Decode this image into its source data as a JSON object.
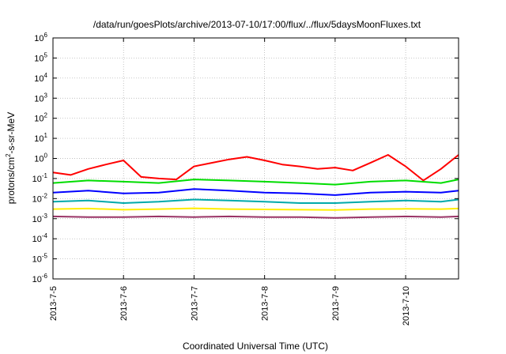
{
  "chart_data": {
    "type": "line",
    "title": "/data/run/goesPlots/archive/2013-07-10/17:00/flux/../flux/5daysMoonFluxes.txt",
    "xlabel": "Coordinated Universal Time (UTC)",
    "ylabel": {
      "base": "protons/cm",
      "sup": "2",
      "rest": "-s-sr-MeV"
    },
    "yscale": "log",
    "ylim": [
      1e-06,
      1000000.0
    ],
    "xlim": [
      "2013-07-05",
      "2013-07-10 18:00"
    ],
    "grid": true,
    "y_ticks": [
      {
        "value": 1e-06,
        "base": "10",
        "exp": "-6"
      },
      {
        "value": 1e-05,
        "base": "10",
        "exp": "-5"
      },
      {
        "value": 0.0001,
        "base": "10",
        "exp": "-4"
      },
      {
        "value": 0.001,
        "base": "10",
        "exp": "-3"
      },
      {
        "value": 0.01,
        "base": "10",
        "exp": "-2"
      },
      {
        "value": 0.1,
        "base": "10",
        "exp": "-1"
      },
      {
        "value": 1,
        "base": "10",
        "exp": "0"
      },
      {
        "value": 10.0,
        "base": "10",
        "exp": "1"
      },
      {
        "value": 100.0,
        "base": "10",
        "exp": "2"
      },
      {
        "value": 1000.0,
        "base": "10",
        "exp": "3"
      },
      {
        "value": 10000.0,
        "base": "10",
        "exp": "4"
      },
      {
        "value": 100000.0,
        "base": "10",
        "exp": "5"
      },
      {
        "value": 1000000.0,
        "base": "10",
        "exp": "6"
      }
    ],
    "x_ticks": [
      "2013-7-5",
      "2013-7-6",
      "2013-7-7",
      "2013-7-8",
      "2013-7-9",
      "2013-7-10"
    ],
    "x_tick_values": [
      "2013-07-05",
      "2013-07-06",
      "2013-07-07",
      "2013-07-08",
      "2013-07-09",
      "2013-07-10"
    ],
    "series": [
      {
        "color": "#ff0000",
        "x": [
          "2013-07-05 00:00",
          "2013-07-05 06:00",
          "2013-07-05 12:00",
          "2013-07-05 18:00",
          "2013-07-06 00:00",
          "2013-07-06 06:00",
          "2013-07-06 12:00",
          "2013-07-06 18:00",
          "2013-07-07 00:00",
          "2013-07-07 06:00",
          "2013-07-07 12:00",
          "2013-07-07 18:00",
          "2013-07-08 00:00",
          "2013-07-08 06:00",
          "2013-07-08 12:00",
          "2013-07-08 18:00",
          "2013-07-09 00:00",
          "2013-07-09 06:00",
          "2013-07-09 12:00",
          "2013-07-09 18:00",
          "2013-07-10 00:00",
          "2013-07-10 06:00",
          "2013-07-10 12:00",
          "2013-07-10 18:00"
        ],
        "values": [
          0.2,
          0.15,
          0.3,
          0.5,
          0.8,
          0.12,
          0.1,
          0.09,
          0.4,
          0.6,
          0.9,
          1.2,
          0.8,
          0.5,
          0.4,
          0.3,
          0.35,
          0.25,
          0.6,
          1.5,
          0.4,
          0.08,
          0.3,
          1.5
        ]
      },
      {
        "color": "#00dd00",
        "x": [
          "2013-07-05 00:00",
          "2013-07-05 12:00",
          "2013-07-06 00:00",
          "2013-07-06 12:00",
          "2013-07-07 00:00",
          "2013-07-07 12:00",
          "2013-07-08 00:00",
          "2013-07-08 12:00",
          "2013-07-09 00:00",
          "2013-07-09 12:00",
          "2013-07-10 00:00",
          "2013-07-10 12:00",
          "2013-07-10 18:00"
        ],
        "values": [
          0.06,
          0.08,
          0.07,
          0.06,
          0.09,
          0.08,
          0.07,
          0.06,
          0.05,
          0.07,
          0.08,
          0.06,
          0.09
        ]
      },
      {
        "color": "#0000ff",
        "x": [
          "2013-07-05 00:00",
          "2013-07-05 12:00",
          "2013-07-06 00:00",
          "2013-07-06 12:00",
          "2013-07-07 00:00",
          "2013-07-07 12:00",
          "2013-07-08 00:00",
          "2013-07-08 12:00",
          "2013-07-09 00:00",
          "2013-07-09 12:00",
          "2013-07-10 00:00",
          "2013-07-10 12:00",
          "2013-07-10 18:00"
        ],
        "values": [
          0.02,
          0.025,
          0.018,
          0.02,
          0.03,
          0.025,
          0.02,
          0.018,
          0.015,
          0.02,
          0.022,
          0.02,
          0.025
        ]
      },
      {
        "color": "#00aaaa",
        "x": [
          "2013-07-05 00:00",
          "2013-07-05 12:00",
          "2013-07-06 00:00",
          "2013-07-06 12:00",
          "2013-07-07 00:00",
          "2013-07-07 12:00",
          "2013-07-08 00:00",
          "2013-07-08 12:00",
          "2013-07-09 00:00",
          "2013-07-09 12:00",
          "2013-07-10 00:00",
          "2013-07-10 12:00",
          "2013-07-10 18:00"
        ],
        "values": [
          0.007,
          0.008,
          0.006,
          0.007,
          0.009,
          0.008,
          0.007,
          0.006,
          0.006,
          0.007,
          0.008,
          0.007,
          0.009
        ]
      },
      {
        "color": "#ffee00",
        "x": [
          "2013-07-05 00:00",
          "2013-07-05 12:00",
          "2013-07-06 00:00",
          "2013-07-06 12:00",
          "2013-07-07 00:00",
          "2013-07-07 12:00",
          "2013-07-08 00:00",
          "2013-07-08 12:00",
          "2013-07-09 00:00",
          "2013-07-09 12:00",
          "2013-07-10 00:00",
          "2013-07-10 12:00",
          "2013-07-10 18:00"
        ],
        "values": [
          0.003,
          0.0032,
          0.0028,
          0.003,
          0.0033,
          0.003,
          0.0029,
          0.0028,
          0.0027,
          0.003,
          0.0031,
          0.003,
          0.0032
        ]
      },
      {
        "color": "#993366",
        "x": [
          "2013-07-05 00:00",
          "2013-07-05 12:00",
          "2013-07-06 00:00",
          "2013-07-06 12:00",
          "2013-07-07 00:00",
          "2013-07-07 12:00",
          "2013-07-08 00:00",
          "2013-07-08 12:00",
          "2013-07-09 00:00",
          "2013-07-09 12:00",
          "2013-07-10 00:00",
          "2013-07-10 12:00",
          "2013-07-10 18:00"
        ],
        "values": [
          0.0013,
          0.0012,
          0.0012,
          0.0013,
          0.0012,
          0.0013,
          0.0012,
          0.0012,
          0.0011,
          0.0012,
          0.0013,
          0.0012,
          0.0013
        ]
      }
    ]
  }
}
